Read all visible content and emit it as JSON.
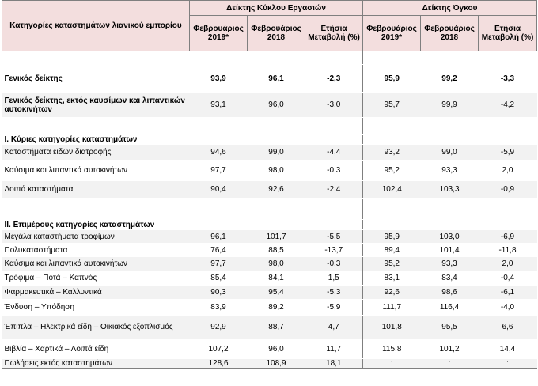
{
  "header": {
    "category_col": "Κατηγορίες καταστημάτων λιανικού εμπορίου",
    "group1": "Δείκτης Κύκλου Εργασιών",
    "group2": "Δείκτης Όγκου",
    "col_feb2019": "Φεβρουάριος 2019*",
    "col_feb2018": "Φεβρουάριος 2018",
    "col_change": "Ετήσια Μεταβολή (%)"
  },
  "rows": [
    {
      "label": "Γενικός δείκτης",
      "v": [
        "93,9",
        "96,1",
        "-2,3",
        "95,9",
        "99,2",
        "-3,3"
      ]
    },
    {
      "label": "Γενικός δείκτης, εκτός καυσίμων και λιπαντικών αυτοκινήτων",
      "v": [
        "93,1",
        "96,0",
        "-3,0",
        "95,7",
        "99,9",
        "-4,2"
      ]
    },
    {
      "label": "I. Κύριες κατηγορίες καταστημάτων"
    },
    {
      "label": "Καταστήματα ειδών διατροφής",
      "v": [
        "94,6",
        "99,0",
        "-4,4",
        "93,2",
        "99,0",
        "-5,9"
      ]
    },
    {
      "label": "Καύσιμα και λιπαντικά αυτοκινήτων",
      "v": [
        "97,7",
        "98,0",
        "-0,3",
        "95,2",
        "93,3",
        "2,0"
      ]
    },
    {
      "label": "Λοιπά καταστήματα",
      "v": [
        "90,4",
        "92,6",
        "-2,4",
        "102,4",
        "103,3",
        "-0,9"
      ]
    },
    {
      "label": "II. Επιμέρους κατηγορίες καταστημάτων"
    },
    {
      "label": "Μεγάλα καταστήματα τροφίμων",
      "v": [
        "96,1",
        "101,7",
        "-5,5",
        "95,9",
        "103,0",
        "-6,9"
      ]
    },
    {
      "label": "Πολυκαταστήματα",
      "v": [
        "76,4",
        "88,5",
        "-13,7",
        "89,4",
        "101,4",
        "-11,8"
      ]
    },
    {
      "label": "Καύσιμα και λιπαντικά αυτοκινήτων",
      "v": [
        "97,7",
        "98,0",
        "-0,3",
        "95,2",
        "93,3",
        "2,0"
      ]
    },
    {
      "label": "Τρόφιμα – Ποτά – Καπνός",
      "v": [
        "85,4",
        "84,1",
        "1,5",
        "83,1",
        "83,4",
        "-0,4"
      ]
    },
    {
      "label": "Φαρμακευτικά – Καλλυντικά",
      "v": [
        "90,3",
        "95,4",
        "-5,3",
        "92,6",
        "98,6",
        "-6,1"
      ]
    },
    {
      "label": "Ένδυση – Υπόδηση",
      "v": [
        "83,9",
        "89,2",
        "-5,9",
        "111,7",
        "116,4",
        "-4,0"
      ]
    },
    {
      "label": "Έπιπλα – Ηλεκτρικά είδη – Οικιακός εξοπλισμός",
      "v": [
        "92,9",
        "88,7",
        "4,7",
        "101,8",
        "95,5",
        "6,6"
      ]
    },
    {
      "label": "Βιβλία – Χαρτικά – Λοιπά είδη",
      "v": [
        "107,2",
        "96,0",
        "11,7",
        "115,8",
        "101,2",
        "14,4"
      ]
    },
    {
      "label": "Πωλήσεις εκτός καταστημάτων",
      "v": [
        "128,6",
        "108,9",
        "18,1",
        ":",
        ":",
        ":"
      ]
    }
  ]
}
